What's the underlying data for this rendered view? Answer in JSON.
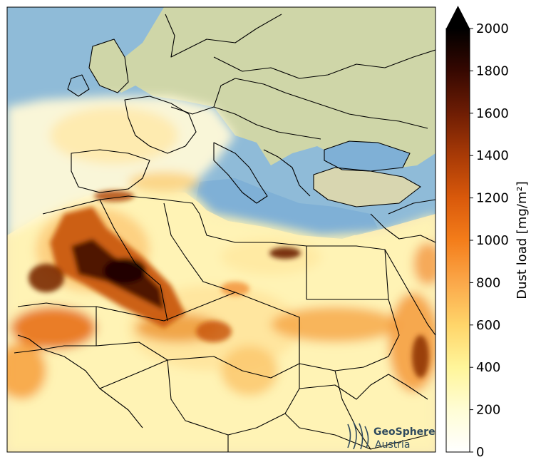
{
  "map": {
    "variable": "Dust load",
    "regions_shown": [
      "Europe",
      "Mediterranean Sea",
      "Black Sea",
      "North Africa",
      "Sahara",
      "Middle East"
    ]
  },
  "colorbar": {
    "label": "Dust load [mg/m²]",
    "min": 0,
    "max": 2000,
    "extend": "max",
    "ticks": [
      "0",
      "200",
      "400",
      "600",
      "800",
      "1000",
      "1200",
      "1400",
      "1600",
      "1800",
      "2000"
    ],
    "colors": [
      "#ffffff",
      "#fffdd5",
      "#fff59a",
      "#ffd56a",
      "#fba84a",
      "#f47d1a",
      "#d9590b",
      "#a83a06",
      "#6e1d04",
      "#360801",
      "#000000"
    ]
  },
  "logo": {
    "line1": "GeoSphere",
    "line2": "Austria"
  }
}
